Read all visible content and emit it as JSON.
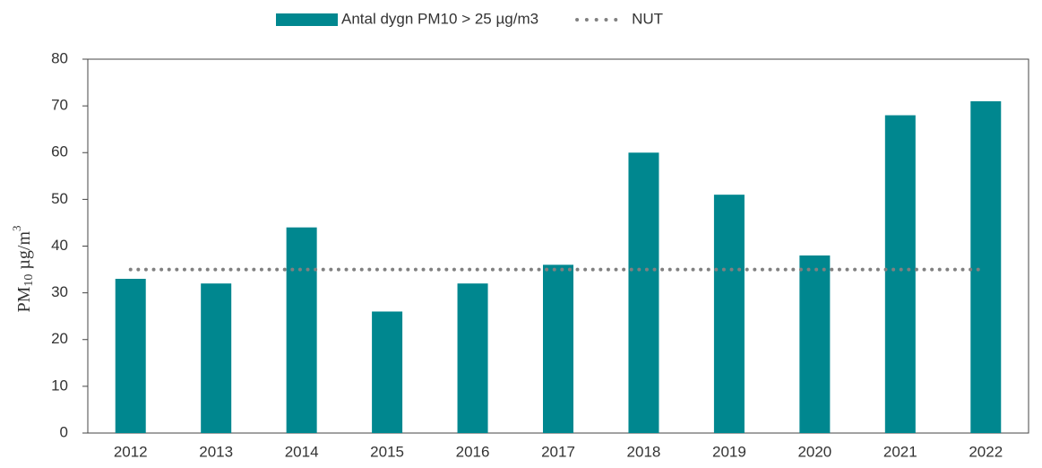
{
  "chart_data": {
    "type": "bar",
    "categories": [
      "2012",
      "2013",
      "2014",
      "2015",
      "2016",
      "2017",
      "2018",
      "2019",
      "2020",
      "2021",
      "2022"
    ],
    "series": [
      {
        "name": "Antal dygn PM10 > 25 µg/m3",
        "type": "bar",
        "color": "#00878f",
        "values": [
          33,
          32,
          44,
          26,
          32,
          36,
          60,
          51,
          38,
          68,
          71
        ]
      },
      {
        "name": "NUT",
        "type": "line",
        "style": "dotted",
        "color": "#808080",
        "values": [
          35,
          35,
          35,
          35,
          35,
          35,
          35,
          35,
          35,
          35,
          35
        ]
      }
    ],
    "y_label": [
      "PM",
      "10",
      " µg/m",
      "3"
    ],
    "ylim": [
      0,
      80
    ],
    "yticks": [
      0,
      10,
      20,
      30,
      40,
      50,
      60,
      70,
      80
    ],
    "grid": false,
    "legend": "top"
  }
}
